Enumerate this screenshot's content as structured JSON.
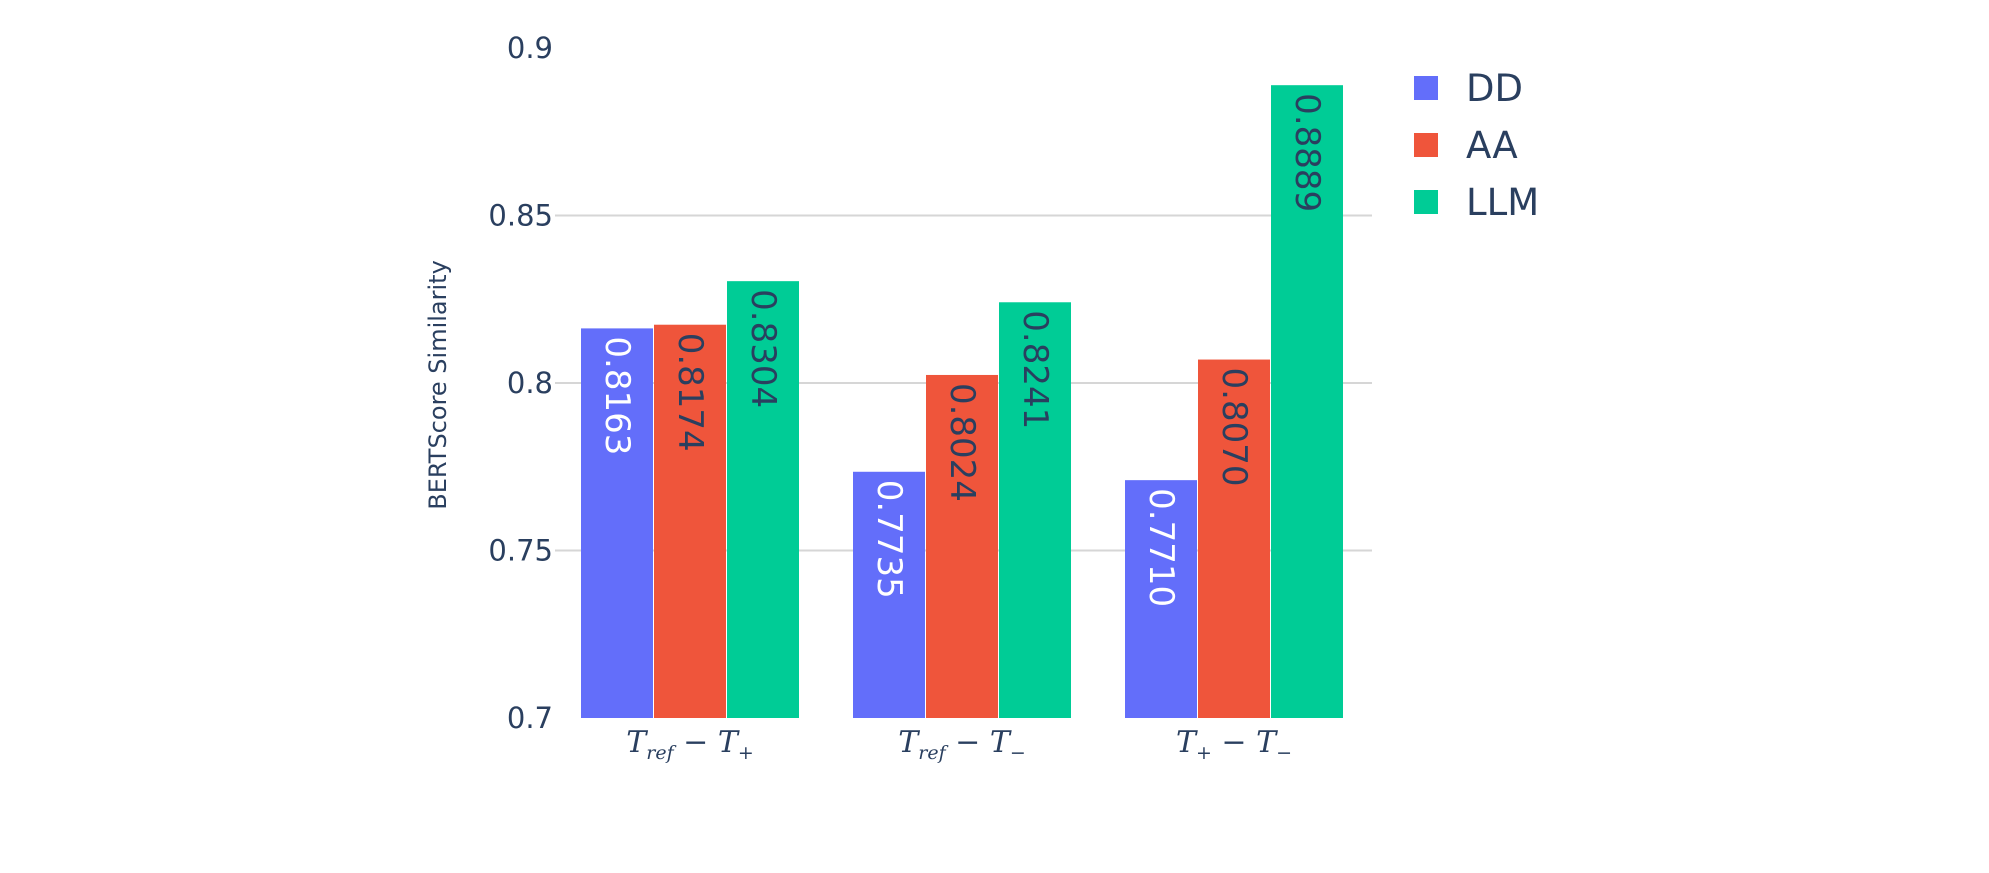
{
  "chart_data": {
    "type": "bar",
    "title": "",
    "xlabel": "",
    "ylabel": "BERTScore Similarity",
    "ylim": [
      0.7,
      0.9
    ],
    "yticks": [
      "0.7",
      "0.75",
      "0.8",
      "0.85",
      "0.9"
    ],
    "grid": true,
    "legend_position": "top-right",
    "categories": [
      {
        "base": "T",
        "sub": "ref",
        "op": "−",
        "base2": "T",
        "sub2": "+"
      },
      {
        "base": "T",
        "sub": "ref",
        "op": "−",
        "base2": "T",
        "sub2": "−"
      },
      {
        "base": "T",
        "sub": "+",
        "op": "−",
        "base2": "T",
        "sub2": "−"
      }
    ],
    "series": [
      {
        "name": "DD",
        "color": "#636efa",
        "label_color": "#ffffff",
        "values": [
          0.8163,
          0.7735,
          0.771
        ],
        "labels": [
          "0.8163",
          "0.7735",
          "0.7710"
        ]
      },
      {
        "name": "AA",
        "color": "#ef553b",
        "label_color": "#2a3f5f",
        "values": [
          0.8174,
          0.8024,
          0.807
        ],
        "labels": [
          "0.8174",
          "0.8024",
          "0.8070"
        ]
      },
      {
        "name": "LLM",
        "color": "#00cc96",
        "label_color": "#2a3f5f",
        "values": [
          0.8304,
          0.8241,
          0.8889
        ],
        "labels": [
          "0.8304",
          "0.8241",
          "0.8889"
        ]
      }
    ]
  }
}
